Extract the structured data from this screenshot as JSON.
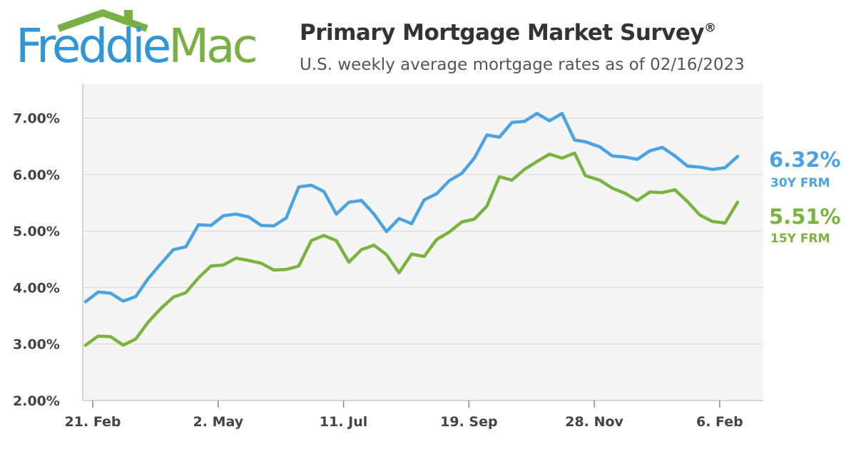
{
  "logo": {
    "part1": "Freddie",
    "part2": "Mac"
  },
  "header": {
    "title": "Primary Mortgage Market Survey",
    "title_mark": "®",
    "subtitle": "U.S. weekly average mortgage rates as of 02/16/2023"
  },
  "colors": {
    "series_30y": "#4ba3e3",
    "series_15y": "#7bb33f",
    "grid": "#dddddd",
    "plot_bg": "#f5f5f5"
  },
  "chart_data": {
    "type": "line",
    "ylim": [
      2.0,
      7.6
    ],
    "yticks": [
      2.0,
      3.0,
      4.0,
      5.0,
      6.0,
      7.0
    ],
    "ytick_labels": [
      "2.00%",
      "3.00%",
      "4.00%",
      "5.00%",
      "6.00%",
      "7.00%"
    ],
    "grid": true,
    "x_dates": [
      "2022-02-17",
      "2022-02-24",
      "2022-03-03",
      "2022-03-10",
      "2022-03-17",
      "2022-03-24",
      "2022-03-31",
      "2022-04-07",
      "2022-04-14",
      "2022-04-21",
      "2022-04-28",
      "2022-05-05",
      "2022-05-12",
      "2022-05-19",
      "2022-05-26",
      "2022-06-02",
      "2022-06-09",
      "2022-06-16",
      "2022-06-23",
      "2022-06-30",
      "2022-07-07",
      "2022-07-14",
      "2022-07-21",
      "2022-07-28",
      "2022-08-04",
      "2022-08-11",
      "2022-08-18",
      "2022-08-25",
      "2022-09-01",
      "2022-09-08",
      "2022-09-15",
      "2022-09-22",
      "2022-09-29",
      "2022-10-06",
      "2022-10-13",
      "2022-10-20",
      "2022-10-27",
      "2022-11-03",
      "2022-11-10",
      "2022-11-17",
      "2022-11-23",
      "2022-12-01",
      "2022-12-08",
      "2022-12-15",
      "2022-12-22",
      "2022-12-29",
      "2023-01-05",
      "2023-01-12",
      "2023-01-19",
      "2023-01-26",
      "2023-02-02",
      "2023-02-09",
      "2023-02-16"
    ],
    "xticks": [
      {
        "date": "2022-02-21",
        "label": "21. Feb"
      },
      {
        "date": "2022-05-02",
        "label": "2. May"
      },
      {
        "date": "2022-07-11",
        "label": "11. Jul"
      },
      {
        "date": "2022-09-19",
        "label": "19. Sep"
      },
      {
        "date": "2022-11-28",
        "label": "28. Nov"
      },
      {
        "date": "2023-02-06",
        "label": "6. Feb"
      }
    ],
    "series": [
      {
        "name": "30Y FRM",
        "last_value_label": "6.32%",
        "values": [
          3.75,
          3.92,
          3.9,
          3.76,
          3.84,
          4.16,
          4.42,
          4.67,
          4.72,
          5.11,
          5.1,
          5.27,
          5.3,
          5.25,
          5.1,
          5.09,
          5.23,
          5.78,
          5.81,
          5.7,
          5.3,
          5.51,
          5.54,
          5.3,
          4.99,
          5.22,
          5.13,
          5.55,
          5.66,
          5.89,
          6.02,
          6.29,
          6.7,
          6.66,
          6.92,
          6.94,
          7.08,
          6.95,
          7.08,
          6.61,
          6.58,
          6.49,
          6.33,
          6.31,
          6.27,
          6.42,
          6.48,
          6.33,
          6.15,
          6.13,
          6.09,
          6.12,
          6.32
        ]
      },
      {
        "name": "15Y FRM",
        "last_value_label": "5.51%",
        "values": [
          2.98,
          3.14,
          3.13,
          2.98,
          3.09,
          3.39,
          3.63,
          3.83,
          3.91,
          4.17,
          4.38,
          4.4,
          4.52,
          4.48,
          4.43,
          4.31,
          4.32,
          4.38,
          4.83,
          4.92,
          4.83,
          4.45,
          4.67,
          4.75,
          4.58,
          4.26,
          4.59,
          4.55,
          4.85,
          4.98,
          5.16,
          5.21,
          5.44,
          5.96,
          5.9,
          6.09,
          6.23,
          6.36,
          6.29,
          6.38,
          5.98,
          5.9,
          5.76,
          5.67,
          5.54,
          5.69,
          5.68,
          5.73,
          5.52,
          5.28,
          5.17,
          5.14,
          5.51
        ]
      }
    ]
  }
}
